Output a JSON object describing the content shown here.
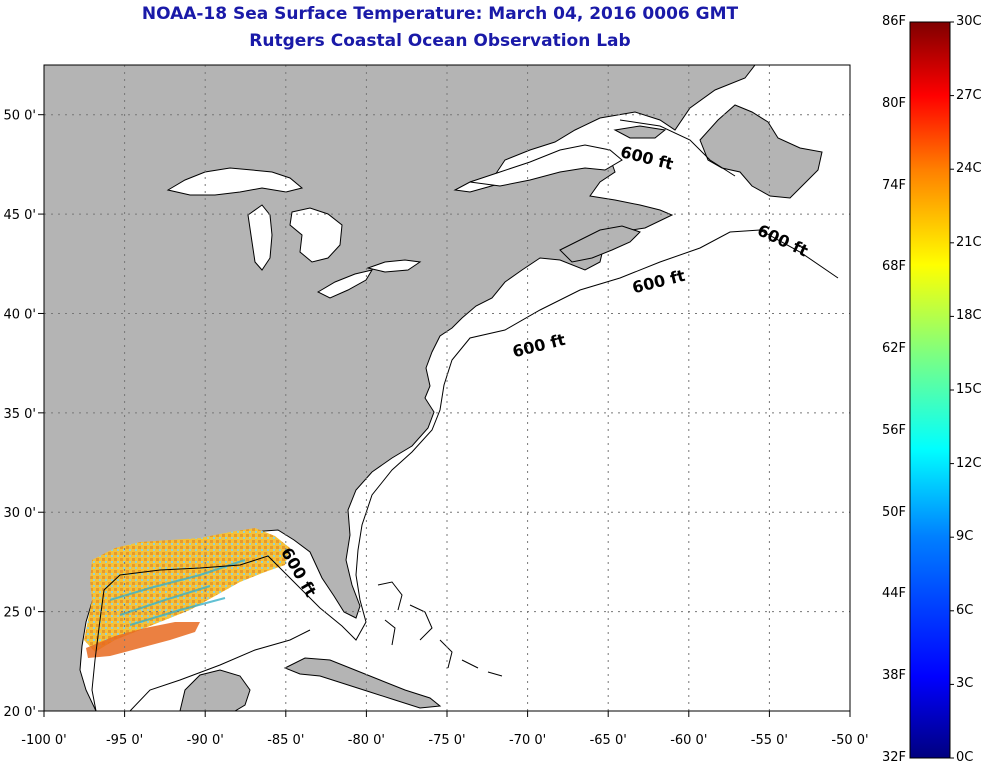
{
  "header": {
    "title": "NOAA-18 Sea Surface Temperature:  March 04, 2016 0006 GMT",
    "subtitle": "Rutgers Coastal Ocean Observation Lab"
  },
  "map": {
    "lon_range": [
      -100,
      -50
    ],
    "lat_range": [
      20,
      52.5
    ],
    "grid": true,
    "land_color": "#b4b4b4",
    "ocean_color": "#ffffff",
    "x_ticks": [
      "-100 0'",
      "-95 0'",
      "-90 0'",
      "-85 0'",
      "-80 0'",
      "-75 0'",
      "-70 0'",
      "-65 0'",
      "-60 0'",
      "-55 0'",
      "-50 0'"
    ],
    "y_ticks": [
      "20 0'",
      "25 0'",
      "30 0'",
      "35 0'",
      "40 0'",
      "45 0'",
      "50 0'"
    ],
    "contour_labels": [
      "600 ft",
      "600 ft",
      "600 ft",
      "600 ft",
      "600 ft"
    ]
  },
  "colorbar": {
    "fahrenheit_labels": [
      "86F",
      "80F",
      "74F",
      "68F",
      "62F",
      "56F",
      "50F",
      "44F",
      "38F",
      "32F"
    ],
    "celsius_labels": [
      "30C",
      "27C",
      "24C",
      "21C",
      "18C",
      "15C",
      "12C",
      "9C",
      "6C",
      "3C",
      "0C"
    ],
    "colors": [
      "#00007f",
      "#0000ff",
      "#007fff",
      "#00ffff",
      "#7fff7f",
      "#ffff00",
      "#ff7f00",
      "#ff0000",
      "#7f0000"
    ]
  }
}
